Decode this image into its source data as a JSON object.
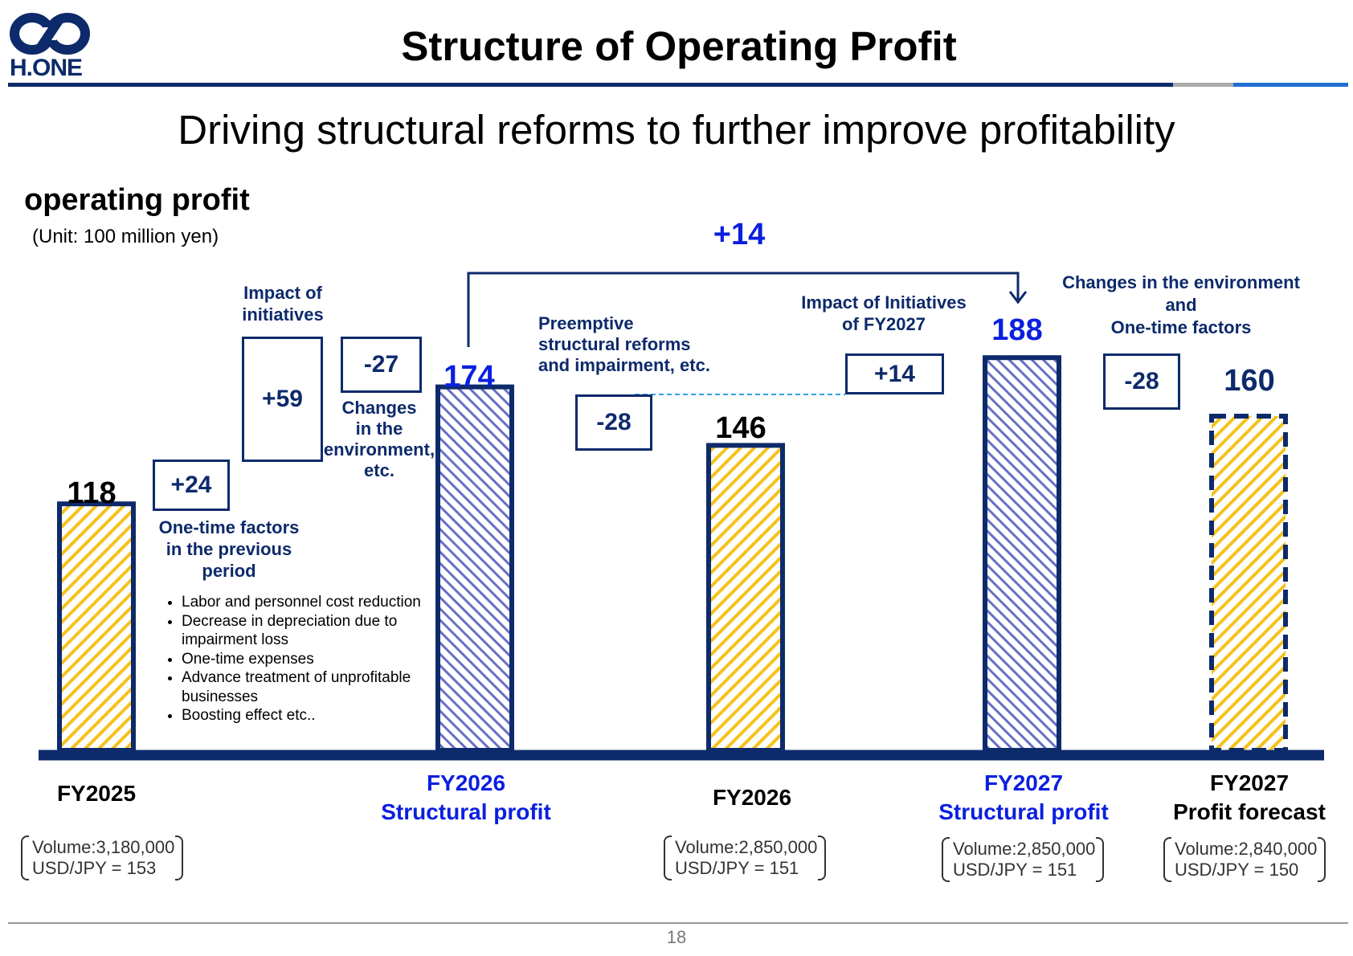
{
  "logo": {
    "text": "H.ONE",
    "colors": {
      "navy": "#0d2a6b",
      "blue": "#1e6fd1"
    }
  },
  "page_title": "Structure of Operating Profit",
  "subtitle": "Driving structural reforms to further improve profitability",
  "section_title": "operating profit",
  "unit": "(Unit: 100 million yen)",
  "colors": {
    "navy": "#0d2a6b",
    "accent_blue": "#0a1fe0",
    "yellow_hatch": "#f5c21b",
    "blue_hatch": "#6670c4",
    "dashed_link": "#29a3e0"
  },
  "chart_data": {
    "type": "bar",
    "subtype": "waterfall",
    "ylim": [
      0,
      200
    ],
    "bars": [
      {
        "key": "fy2025",
        "value": 118,
        "value_label": "118",
        "category": [
          "FY2025"
        ],
        "style": "yellow-hatch",
        "label_color": "black",
        "conditions": [
          "Volume:3,180,000",
          "USD/JPY = 153"
        ]
      },
      {
        "key": "fy2026_structural",
        "value": 174,
        "value_label": "174",
        "category": [
          "FY2026",
          "Structural profit"
        ],
        "style": "blue-hatch",
        "label_color": "blue",
        "conditions": []
      },
      {
        "key": "fy2026",
        "value": 146,
        "value_label": "146",
        "category": [
          "FY2026"
        ],
        "style": "yellow-hatch",
        "label_color": "black",
        "conditions": [
          "Volume:2,850,000",
          "USD/JPY = 151"
        ]
      },
      {
        "key": "fy2027_structural",
        "value": 188,
        "value_label": "188",
        "category": [
          "FY2027",
          "Structural profit"
        ],
        "style": "blue-hatch",
        "label_color": "blue",
        "conditions": [
          "Volume:2,850,000",
          "USD/JPY = 151"
        ]
      },
      {
        "key": "fy2027_forecast",
        "value": 160,
        "value_label": "160",
        "category": [
          "FY2027",
          "Profit forecast"
        ],
        "style": "yellow-hatch-dashed",
        "label_color": "black",
        "conditions": [
          "Volume:2,840,000",
          "USD/JPY = 150"
        ]
      }
    ],
    "steps": [
      {
        "key": "onetime_prev",
        "value": 24,
        "label": "+24",
        "description": [
          "One-time factors",
          "in the previous",
          "period"
        ]
      },
      {
        "key": "initiatives",
        "value": 59,
        "label": "+59",
        "description": [
          "Impact of",
          "initiatives"
        ]
      },
      {
        "key": "env",
        "value": -27,
        "label": "-27",
        "description": [
          "Changes",
          "in the",
          "environment,",
          "etc."
        ]
      },
      {
        "key": "preemptive",
        "value": -28,
        "label": "-28",
        "description": [
          "Preemptive",
          "structural reforms",
          "and impairment, etc."
        ]
      },
      {
        "key": "fy27_initiatives",
        "value": 14,
        "label": "+14",
        "description": [
          "Impact of Initiatives",
          "of FY2027"
        ]
      },
      {
        "key": "env_onetime",
        "value": -28,
        "label": "-28",
        "description": [
          "Changes in the environment",
          "and",
          "One-time factors"
        ]
      }
    ],
    "structural_increase": {
      "value": 14,
      "label": "+14"
    },
    "initiative_items": [
      "Labor and personnel cost reduction",
      "Decrease in depreciation due to impairment loss",
      "One-time expenses",
      "Advance treatment of unprofitable businesses",
      "Boosting effect etc.."
    ]
  },
  "page_number": "18"
}
